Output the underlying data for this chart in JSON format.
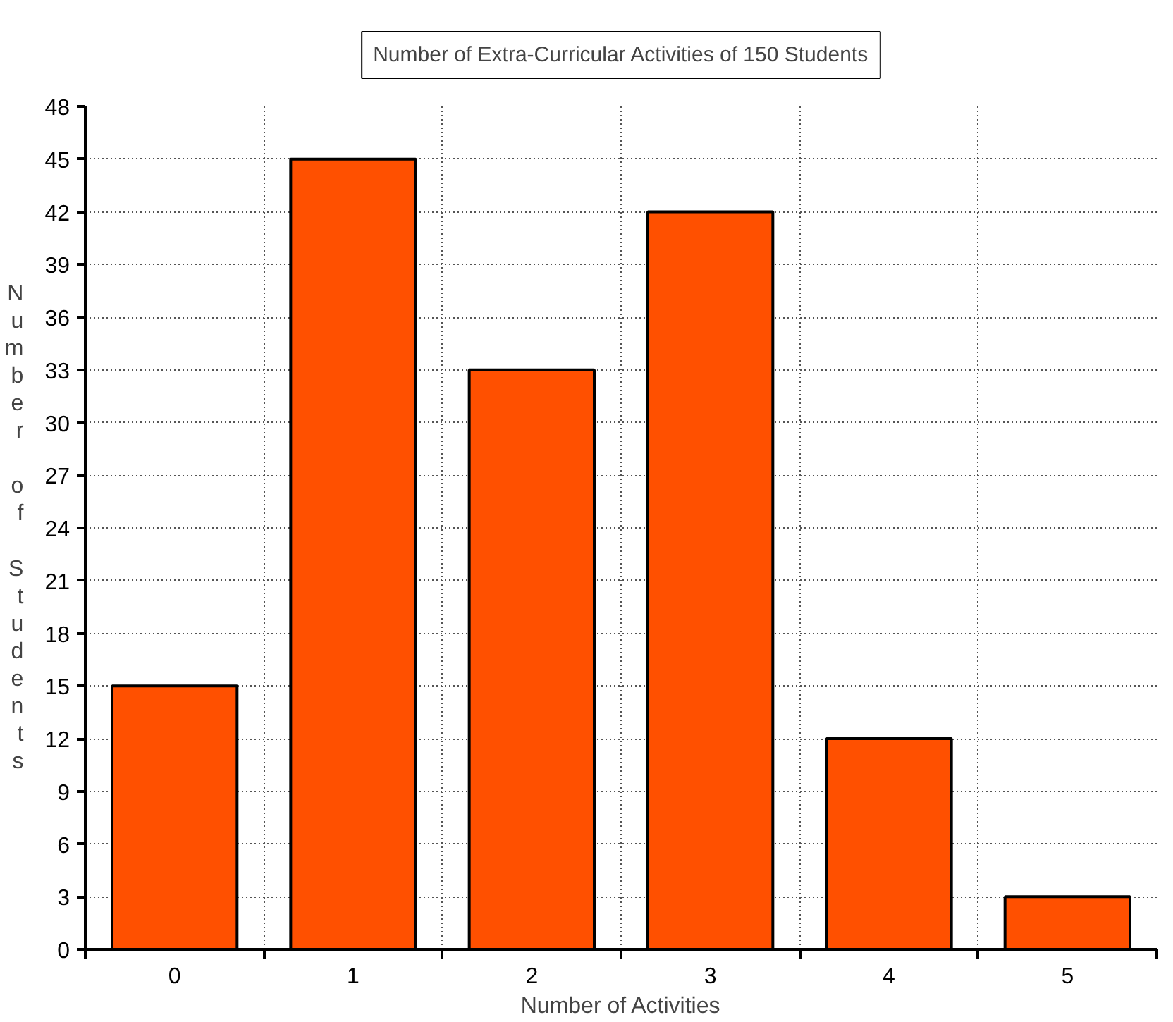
{
  "chart_data": {
    "type": "bar",
    "title": "Number of Extra-Curricular Activities of 150 Students",
    "xlabel": "Number of Activities",
    "ylabel": "Number of Students",
    "categories": [
      "0",
      "1",
      "2",
      "3",
      "4",
      "5"
    ],
    "values": [
      15,
      45,
      33,
      42,
      12,
      3
    ],
    "color": "#ff5000",
    "ylim": [
      0,
      48
    ],
    "yticks": [
      0,
      3,
      6,
      9,
      12,
      15,
      18,
      21,
      24,
      27,
      30,
      33,
      36,
      39,
      42,
      45,
      48
    ],
    "grid": true
  }
}
